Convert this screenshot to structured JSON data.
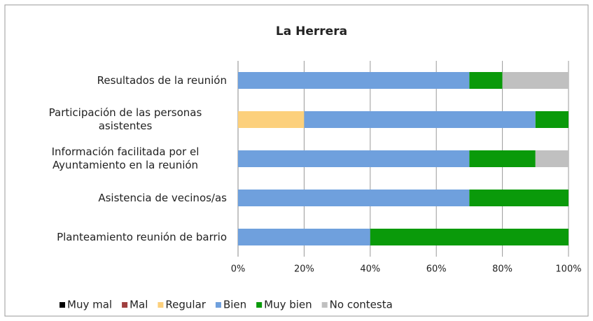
{
  "chart_data": {
    "type": "bar",
    "orientation": "horizontal",
    "stacked": true,
    "title": "La Herrera",
    "categories": [
      "Resultados de la reunión",
      "Participación de las personas asistentes",
      "Información facilitada por el Ayuntamiento en la reunión",
      "Asistencia de vecinos/as",
      "Planteamiento reunión de barrio"
    ],
    "series": [
      {
        "name": "Muy mal",
        "color": "#000000",
        "values": [
          0,
          0,
          0,
          0,
          0
        ]
      },
      {
        "name": "Mal",
        "color": "#a04040",
        "values": [
          0,
          0,
          0,
          0,
          0
        ]
      },
      {
        "name": "Regular",
        "color": "#fcd07c",
        "values": [
          0,
          20,
          0,
          0,
          0
        ]
      },
      {
        "name": "Bien",
        "color": "#6fa0dd",
        "values": [
          70,
          70,
          70,
          70,
          40
        ]
      },
      {
        "name": "Muy bien",
        "color": "#0a9a0a",
        "values": [
          10,
          10,
          20,
          30,
          60
        ]
      },
      {
        "name": "No contesta",
        "color": "#c0c0c0",
        "values": [
          20,
          0,
          10,
          0,
          0
        ]
      }
    ],
    "xlim": [
      0,
      100
    ],
    "xticks": [
      {
        "value": 0,
        "label": "0%"
      },
      {
        "value": 20,
        "label": "20%"
      },
      {
        "value": 40,
        "label": "40%"
      },
      {
        "value": 60,
        "label": "60%"
      },
      {
        "value": 80,
        "label": "80%"
      },
      {
        "value": 100,
        "label": "100%"
      }
    ],
    "grid": true,
    "legend": "bottom"
  }
}
